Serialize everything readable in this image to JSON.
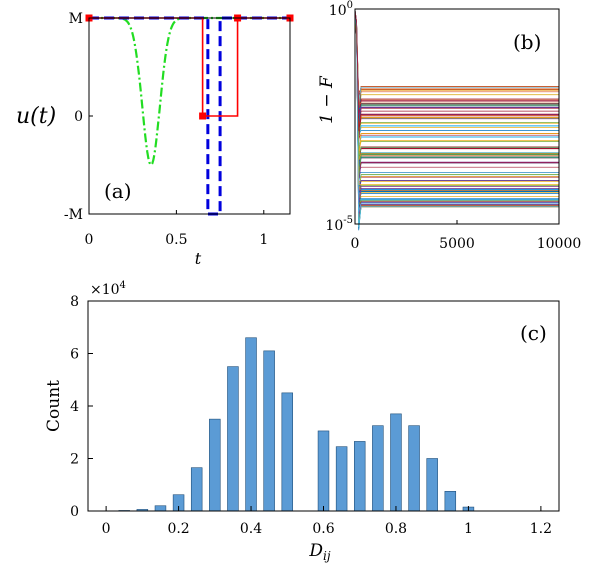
{
  "chart_data": [
    {
      "panel": "a",
      "type": "line",
      "panel_label": "(a)",
      "xlabel": "t",
      "ylabel": "u(t)",
      "xlim": [
        0,
        1.15
      ],
      "ylim": [
        -1,
        1
      ],
      "x_ticks": [
        0,
        0.5,
        1
      ],
      "x_tick_labels": [
        "0",
        "0.5",
        "1"
      ],
      "y_ticks": [
        -1,
        0,
        1
      ],
      "y_tick_labels": [
        "-M",
        "0",
        "M"
      ],
      "series": [
        {
          "color": "#ff0000",
          "style": "solid",
          "markers": "square",
          "x": [
            0,
            0.65,
            0.65,
            0.85,
            0.85,
            1.15
          ],
          "y": [
            1,
            1,
            0,
            0,
            1,
            1
          ],
          "marker_x": [
            0,
            0.65,
            0.85,
            1.15
          ],
          "marker_y": [
            1,
            0,
            1,
            1
          ]
        },
        {
          "color": "#0000dd",
          "style": "dashed",
          "x": [
            0,
            0.68,
            0.68,
            0.75,
            0.75,
            1.15
          ],
          "y": [
            1,
            1,
            -1,
            -1,
            1,
            1
          ]
        },
        {
          "color": "#22dd22",
          "style": "dash-dot",
          "gauss_center": 0.355,
          "gauss_width": 0.05,
          "gauss_depth": 1.5,
          "x_range": [
            0,
            1.15
          ]
        }
      ]
    },
    {
      "panel": "b",
      "type": "line",
      "panel_label": "(b)",
      "ylabel": "1 − F",
      "xlim": [
        0,
        10000
      ],
      "ylim_log10": [
        -5,
        0
      ],
      "x_ticks": [
        0,
        5000,
        10000
      ],
      "x_tick_labels": [
        "0",
        "5000",
        "10000"
      ],
      "y_tick_base": "10",
      "y_tick_exponents": [
        "0",
        "-5"
      ],
      "final_value_range_log10": [
        -4.6,
        -1.8
      ]
    },
    {
      "panel": "c",
      "type": "bar",
      "panel_label": "(c)",
      "xlabel": "D",
      "xlabel_sub": "ij",
      "ylabel": "Count",
      "multiplier_base": "×10",
      "multiplier_exp": "4",
      "xlim": [
        -0.05,
        1.25
      ],
      "ylim": [
        0,
        80000
      ],
      "bar_width": 0.03,
      "x_ticks": [
        0,
        0.2,
        0.4,
        0.6,
        0.8,
        1,
        1.2
      ],
      "x_tick_labels": [
        "0",
        "0.2",
        "0.4",
        "0.6",
        "0.8",
        "1",
        "1.2"
      ],
      "y_ticks": [
        0,
        20000,
        40000,
        60000,
        80000
      ],
      "y_tick_labels": [
        "0",
        "2",
        "4",
        "6",
        "8"
      ],
      "bar_color": "#5b9bd5",
      "x": [
        0.05,
        0.1,
        0.15,
        0.2,
        0.25,
        0.3,
        0.35,
        0.4,
        0.45,
        0.5,
        0.55,
        0.6,
        0.65,
        0.7,
        0.75,
        0.8,
        0.85,
        0.9,
        0.95,
        1.0,
        1.05,
        1.1,
        1.15
      ],
      "values": [
        200,
        600,
        2000,
        6200,
        16500,
        35000,
        55000,
        66000,
        61000,
        45000,
        0,
        30500,
        24500,
        26500,
        32500,
        37000,
        32500,
        20000,
        7500,
        1500,
        0,
        0,
        0
      ]
    }
  ]
}
